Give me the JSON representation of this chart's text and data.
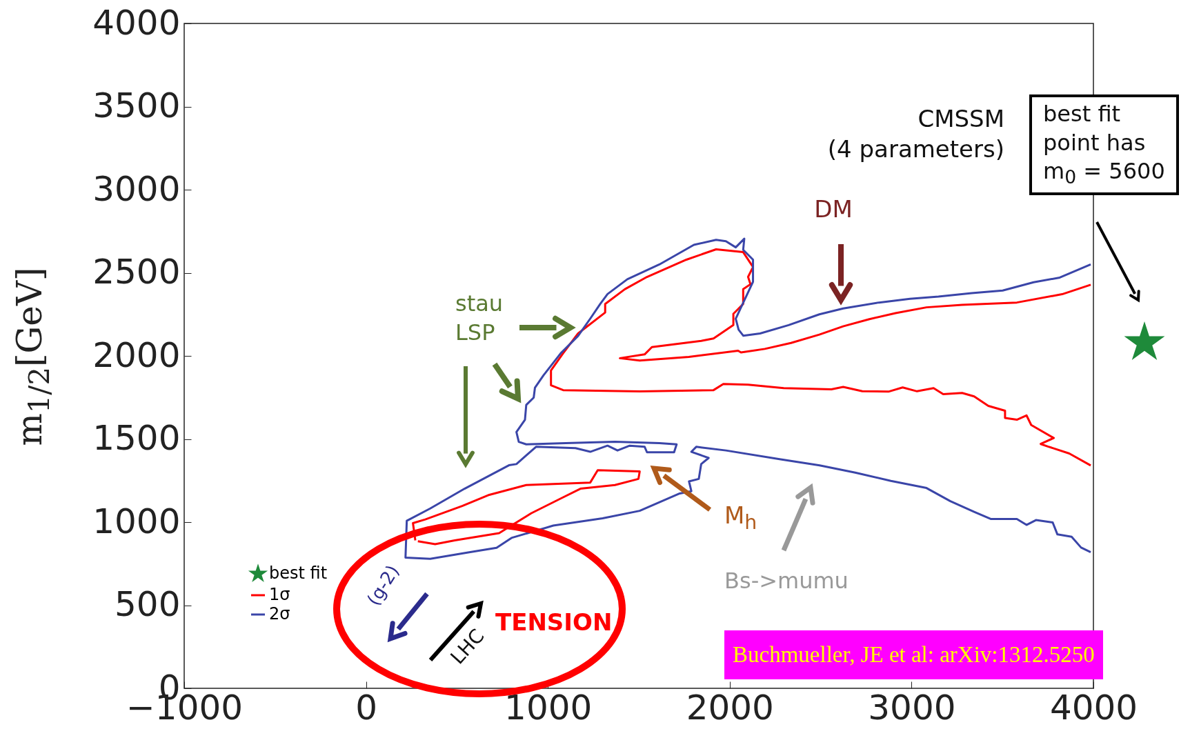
{
  "chart_data": {
    "type": "line",
    "ylabel": "m$_{1/2}$[GeV]",
    "xlim": [
      -1000,
      4000
    ],
    "ylim": [
      0,
      4000
    ],
    "xticks": [
      {
        "value": -1000,
        "label": "−1000"
      },
      0,
      1000,
      2000,
      3000,
      4000
    ],
    "yticks": [
      0,
      500,
      1000,
      1500,
      2000,
      2500,
      3000,
      3500,
      4000
    ],
    "grid": false,
    "legend": "bottom left",
    "series": [
      {
        "name": "best fit",
        "type": "scatter",
        "marker": "star",
        "color": "#1e8a3a"
      },
      {
        "name": "1σ",
        "color": "#ff0000",
        "x": [
          3985,
          3828,
          3579,
          3278,
          3082,
          2912,
          2768,
          2624,
          2493,
          2337,
          2193,
          2062,
          2046,
          1775,
          1505,
          1396,
          1532,
          1572,
          1843,
          1911,
          2020,
          2020,
          2074,
          2074,
          2114,
          2101,
          2128,
          2074,
          1925,
          1762,
          1545,
          1423,
          1315,
          1315,
          1166,
          1084,
          1017,
          1017,
          1084,
          1505,
          1911,
          1965,
          2101,
          2297,
          2559,
          2624,
          2729,
          2873,
          2951,
          3030,
          3121,
          3174,
          3278,
          3344,
          3422,
          3514,
          3514,
          3579,
          3632,
          3658,
          3782,
          3710,
          3749,
          3867,
          3985,
          null,
          271,
          258,
          326,
          529,
          678,
          881,
          1233,
          1274,
          1505,
          1498,
          1369,
          1179,
          1071,
          908,
          732,
          488,
          380,
          285
        ],
        "values": [
          2428,
          2371,
          2321,
          2307,
          2292,
          2257,
          2221,
          2178,
          2128,
          2078,
          2042,
          2021,
          2031,
          1994,
          1972,
          1986,
          2009,
          2053,
          2090,
          2105,
          2186,
          2253,
          2312,
          2401,
          2431,
          2475,
          2535,
          2624,
          2641,
          2579,
          2475,
          2401,
          2312,
          2261,
          2135,
          2016,
          1912,
          1823,
          1794,
          1786,
          1794,
          1831,
          1827,
          1806,
          1799,
          1813,
          1787,
          1785,
          1810,
          1787,
          1806,
          1770,
          1777,
          1756,
          1699,
          1670,
          1627,
          1616,
          1642,
          1584,
          1506,
          1470,
          1455,
          1413,
          1341,
          null,
          890,
          994,
          1016,
          1097,
          1164,
          1223,
          1238,
          1312,
          1305,
          1260,
          1223,
          1201,
          1142,
          1053,
          934,
          890,
          867,
          885
        ]
      },
      {
        "name": "2σ",
        "color": "#3a45a8",
        "x": [
          3985,
          3815,
          3671,
          3501,
          3331,
          3148,
          2991,
          2821,
          2624,
          2493,
          2324,
          2167,
          2075,
          2049,
          2033,
          2128,
          2128,
          2074,
          2080,
          2033,
          1979,
          1925,
          1803,
          1613,
          1437,
          1328,
          1288,
          1233,
          1166,
          1071,
          976,
          929,
          922,
          881,
          874,
          827,
          840,
          881,
          1098,
          1369,
          1613,
          1708,
          1694,
          1545,
          1532,
          1450,
          1383,
          1328,
          1233,
          1152,
          935,
          827,
          786,
          542,
          353,
          224,
          217,
          353,
          556,
          718,
          800,
          1030,
          1301,
          1505,
          1721,
          1789,
          1776,
          1830,
          1843,
          1884,
          1789,
          1816,
          1979,
          2274,
          2494,
          2690,
          2886,
          3082,
          3213,
          3344,
          3435,
          3579,
          3632,
          3684,
          3776,
          3802,
          3880,
          3932,
          3985
        ],
        "values": [
          2550,
          2471,
          2443,
          2393,
          2378,
          2357,
          2343,
          2321,
          2285,
          2250,
          2185,
          2135,
          2121,
          2157,
          2224,
          2446,
          2579,
          2638,
          2705,
          2653,
          2690,
          2698,
          2668,
          2550,
          2461,
          2372,
          2313,
          2224,
          2120,
          2016,
          1883,
          1809,
          1749,
          1705,
          1616,
          1542,
          1483,
          1468,
          1475,
          1483,
          1475,
          1468,
          1420,
          1420,
          1453,
          1460,
          1431,
          1460,
          1423,
          1445,
          1453,
          1349,
          1342,
          1201,
          1082,
          1008,
          786,
          779,
          816,
          845,
          905,
          979,
          1023,
          1068,
          1171,
          1186,
          1245,
          1260,
          1349,
          1386,
          1423,
          1453,
          1431,
          1379,
          1341,
          1298,
          1248,
          1205,
          1126,
          1062,
          1019,
          1019,
          983,
          1012,
          998,
          926,
          912,
          847,
          819
        ]
      }
    ],
    "annotations": [
      "CMSSM\n(4 parameters)",
      "best fit\npoint has\nm$_{0}$ = 5600",
      "DM",
      "stau\nLSP",
      "M$_{h}$",
      "Bs->mumu",
      "(g-2)",
      "LHC",
      "TENSION",
      "Buchmueller, JE et al: arXiv:1312.5250"
    ]
  }
}
